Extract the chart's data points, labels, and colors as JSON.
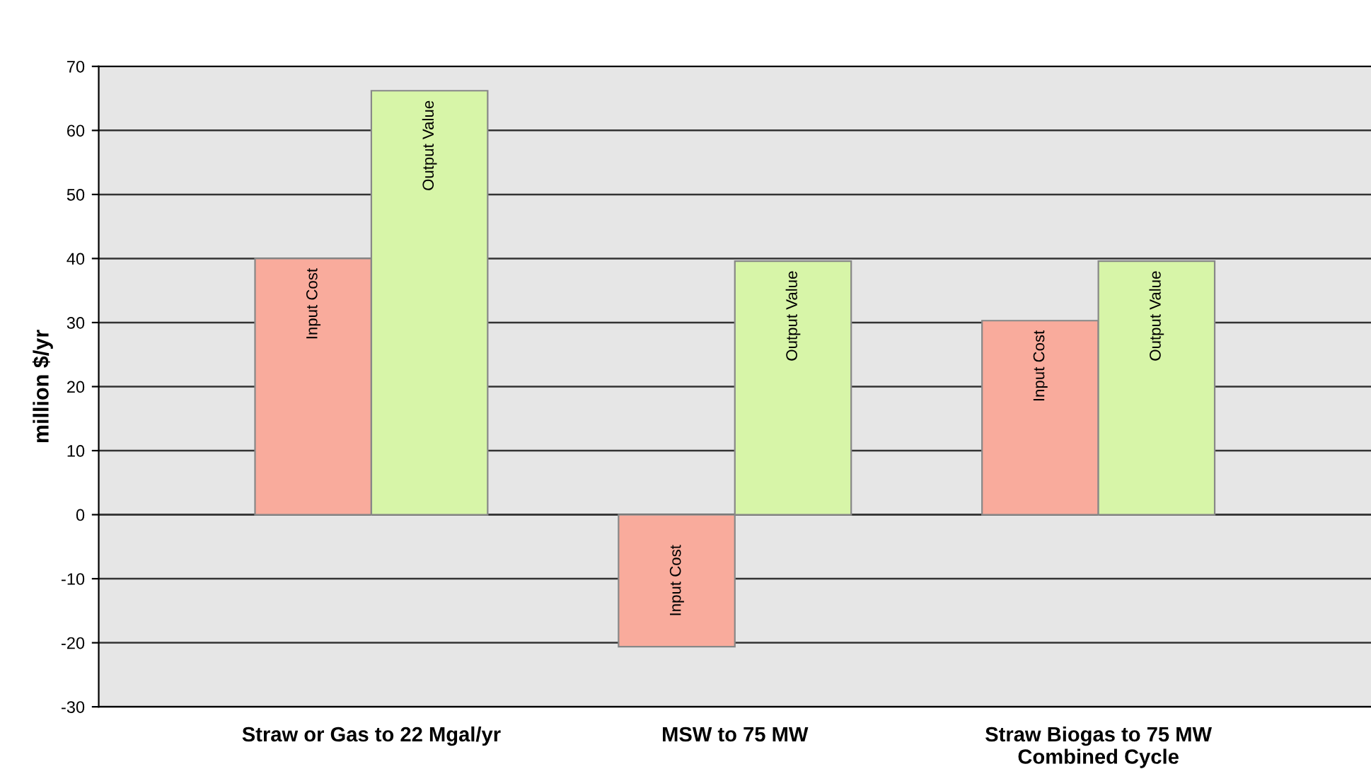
{
  "chart_data": {
    "type": "bar",
    "ylabel": "million $/yr",
    "categories": [
      "Straw or Gas to 22 Mgal/yr",
      "MSW to 75 MW",
      "Straw Biogas to 75 MW\nCombined Cycle"
    ],
    "series": [
      {
        "name": "Input Cost",
        "color": "#f9ab9c",
        "values": [
          40,
          -20.6,
          30.3
        ]
      },
      {
        "name": "Output Value",
        "color": "#d7f5a8",
        "values": [
          66.2,
          39.6,
          39.6
        ]
      }
    ],
    "ylim": [
      -30,
      70
    ],
    "yticks": [
      -30,
      -20,
      -10,
      0,
      10,
      20,
      30,
      40,
      50,
      60,
      70
    ],
    "grid": "y",
    "legend": false
  }
}
